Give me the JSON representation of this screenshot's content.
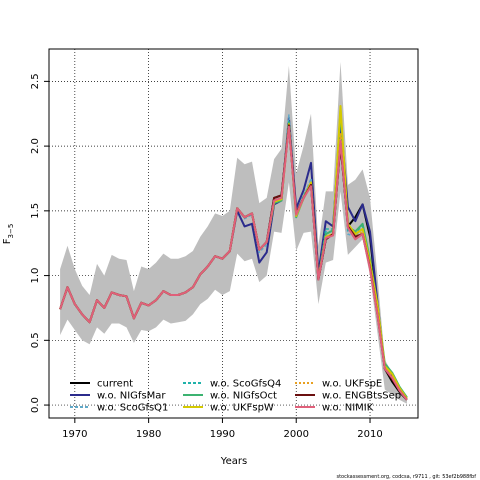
{
  "chart_data": {
    "type": "line",
    "xlabel": "Years",
    "ylabel": "F3-5",
    "ylabel_main": "F",
    "ylabel_sub": "3−5",
    "xlim": [
      1966.5,
      2016.5
    ],
    "ylim": [
      -0.1,
      2.75
    ],
    "xticks": [
      1970,
      1980,
      1990,
      2000,
      2010
    ],
    "yticks": [
      0.0,
      0.5,
      1.0,
      1.5,
      2.0,
      2.5
    ],
    "xtick_labels": [
      "1970",
      "1980",
      "1990",
      "2000",
      "2010"
    ],
    "ytick_labels": [
      "0.0",
      "0.5",
      "1.0",
      "1.5",
      "2.0",
      "2.5"
    ],
    "grid": true,
    "legend_position": "bottom-left",
    "footer": "stockassessment.org, codcsa, r9711 , git: 53ef2b988fbf",
    "x": [
      1968,
      1969,
      1970,
      1971,
      1972,
      1973,
      1974,
      1975,
      1976,
      1977,
      1978,
      1979,
      1980,
      1981,
      1982,
      1983,
      1984,
      1985,
      1986,
      1987,
      1988,
      1989,
      1990,
      1991,
      1992,
      1993,
      1994,
      1995,
      1996,
      1997,
      1998,
      1999,
      2000,
      2001,
      2002,
      2003,
      2004,
      2005,
      2006,
      2007,
      2008,
      2009,
      2010,
      2011,
      2012,
      2013,
      2014,
      2015
    ],
    "band": {
      "name": "confidence-band",
      "color": "#bebebe",
      "upper": [
        1.05,
        1.23,
        1.05,
        0.92,
        0.85,
        1.09,
        1.0,
        1.16,
        1.13,
        1.12,
        0.88,
        1.07,
        1.05,
        1.1,
        1.17,
        1.13,
        1.13,
        1.15,
        1.19,
        1.3,
        1.38,
        1.48,
        1.46,
        1.5,
        1.91,
        1.86,
        1.88,
        1.56,
        1.6,
        1.9,
        1.98,
        2.62,
        1.79,
        2.0,
        2.25,
        1.23,
        1.65,
        1.65,
        2.65,
        1.7,
        1.74,
        1.82,
        1.6,
        1.0,
        0.35,
        0.25,
        0.15,
        0.07
      ],
      "lower": [
        0.54,
        0.66,
        0.58,
        0.5,
        0.47,
        0.6,
        0.55,
        0.63,
        0.63,
        0.6,
        0.48,
        0.58,
        0.57,
        0.6,
        0.66,
        0.63,
        0.64,
        0.65,
        0.7,
        0.78,
        0.82,
        0.89,
        0.85,
        0.88,
        1.17,
        1.11,
        1.13,
        0.95,
        1.0,
        1.34,
        1.33,
        1.72,
        1.19,
        1.33,
        1.34,
        0.78,
        1.1,
        1.12,
        1.65,
        1.16,
        1.22,
        1.28,
        1.0,
        0.56,
        0.12,
        0.08,
        0.04,
        0.01
      ]
    },
    "series": [
      {
        "name": "current",
        "color": "#000000",
        "dash": "",
        "width": 2,
        "values": [
          0.74,
          0.91,
          0.78,
          0.7,
          0.64,
          0.81,
          0.75,
          0.87,
          0.85,
          0.84,
          0.67,
          0.79,
          0.77,
          0.81,
          0.88,
          0.85,
          0.85,
          0.87,
          0.91,
          1.01,
          1.07,
          1.15,
          1.13,
          1.19,
          1.52,
          1.45,
          1.48,
          1.2,
          1.26,
          1.6,
          1.62,
          2.16,
          1.48,
          1.6,
          1.7,
          0.97,
          1.28,
          1.32,
          2.02,
          1.38,
          1.45,
          1.55,
          1.3,
          0.76,
          0.28,
          0.18,
          0.1,
          0.04
        ]
      },
      {
        "name": "w.o. NIGfsMar",
        "color": "#2b2b8c",
        "dash": "",
        "width": 2,
        "values": [
          0.74,
          0.91,
          0.78,
          0.7,
          0.64,
          0.81,
          0.75,
          0.87,
          0.85,
          0.84,
          0.67,
          0.79,
          0.77,
          0.81,
          0.88,
          0.85,
          0.85,
          0.87,
          0.91,
          1.01,
          1.07,
          1.15,
          1.13,
          1.19,
          1.5,
          1.38,
          1.4,
          1.1,
          1.18,
          1.55,
          1.58,
          2.22,
          1.52,
          1.66,
          1.87,
          1.02,
          1.42,
          1.38,
          2.2,
          1.53,
          1.42,
          1.55,
          1.34,
          0.8,
          0.28,
          0.22,
          0.12,
          0.05
        ]
      },
      {
        "name": "w.o. ScoGfsQ1",
        "color": "#5fa8c8",
        "dash": "3,2",
        "width": 1.6,
        "values": [
          0.74,
          0.91,
          0.78,
          0.7,
          0.64,
          0.81,
          0.75,
          0.87,
          0.85,
          0.84,
          0.67,
          0.79,
          0.77,
          0.81,
          0.88,
          0.85,
          0.85,
          0.87,
          0.91,
          1.01,
          1.07,
          1.15,
          1.13,
          1.19,
          1.52,
          1.44,
          1.47,
          1.18,
          1.24,
          1.57,
          1.6,
          2.24,
          1.46,
          1.61,
          1.75,
          0.98,
          1.34,
          1.34,
          2.28,
          1.32,
          1.3,
          1.38,
          1.1,
          0.72,
          0.3,
          0.25,
          0.14,
          0.05
        ]
      },
      {
        "name": "w.o. ScoGfsQ4",
        "color": "#20b2aa",
        "dash": "3,2",
        "width": 1.6,
        "values": [
          0.74,
          0.91,
          0.78,
          0.7,
          0.64,
          0.81,
          0.75,
          0.87,
          0.85,
          0.84,
          0.67,
          0.79,
          0.77,
          0.81,
          0.88,
          0.85,
          0.85,
          0.87,
          0.91,
          1.01,
          1.07,
          1.15,
          1.13,
          1.19,
          1.52,
          1.45,
          1.48,
          1.2,
          1.26,
          1.58,
          1.6,
          2.2,
          1.47,
          1.62,
          1.72,
          0.98,
          1.36,
          1.36,
          2.3,
          1.35,
          1.32,
          1.4,
          1.12,
          0.74,
          0.3,
          0.22,
          0.12,
          0.05
        ]
      },
      {
        "name": "w.o. NIGfsOct",
        "color": "#3cb371",
        "dash": "",
        "width": 2,
        "values": [
          0.74,
          0.91,
          0.78,
          0.7,
          0.64,
          0.81,
          0.75,
          0.87,
          0.85,
          0.84,
          0.67,
          0.79,
          0.77,
          0.81,
          0.88,
          0.85,
          0.85,
          0.87,
          0.91,
          1.01,
          1.07,
          1.15,
          1.13,
          1.19,
          1.52,
          1.45,
          1.48,
          1.2,
          1.26,
          1.56,
          1.58,
          2.18,
          1.45,
          1.6,
          1.7,
          0.97,
          1.32,
          1.35,
          2.28,
          1.38,
          1.34,
          1.4,
          1.12,
          0.78,
          0.32,
          0.25,
          0.14,
          0.06
        ]
      },
      {
        "name": "w.o. UKFspW",
        "color": "#d4c900",
        "dash": "",
        "width": 2,
        "values": [
          0.74,
          0.91,
          0.78,
          0.7,
          0.64,
          0.81,
          0.75,
          0.87,
          0.85,
          0.84,
          0.67,
          0.79,
          0.77,
          0.81,
          0.88,
          0.85,
          0.85,
          0.87,
          0.91,
          1.01,
          1.07,
          1.15,
          1.13,
          1.19,
          1.52,
          1.45,
          1.48,
          1.2,
          1.26,
          1.57,
          1.59,
          2.17,
          1.46,
          1.6,
          1.72,
          0.98,
          1.3,
          1.32,
          2.31,
          1.4,
          1.32,
          1.36,
          1.1,
          0.78,
          0.3,
          0.24,
          0.13,
          0.05
        ]
      },
      {
        "name": "w.o. UKFspE",
        "color": "#e8a020",
        "dash": "2,2",
        "width": 1.6,
        "values": [
          0.74,
          0.91,
          0.78,
          0.7,
          0.64,
          0.81,
          0.75,
          0.87,
          0.85,
          0.84,
          0.67,
          0.79,
          0.77,
          0.81,
          0.88,
          0.85,
          0.85,
          0.87,
          0.91,
          1.01,
          1.07,
          1.15,
          1.13,
          1.19,
          1.52,
          1.45,
          1.48,
          1.2,
          1.26,
          1.58,
          1.6,
          2.16,
          1.47,
          1.61,
          1.71,
          0.97,
          1.3,
          1.32,
          2.1,
          1.38,
          1.3,
          1.34,
          1.08,
          0.74,
          0.29,
          0.22,
          0.12,
          0.05
        ]
      },
      {
        "name": "w.o. ENGBtsSep",
        "color": "#6b1010",
        "dash": "",
        "width": 2,
        "values": [
          0.74,
          0.91,
          0.78,
          0.7,
          0.64,
          0.81,
          0.75,
          0.87,
          0.85,
          0.84,
          0.67,
          0.79,
          0.77,
          0.81,
          0.88,
          0.85,
          0.85,
          0.87,
          0.91,
          1.01,
          1.07,
          1.15,
          1.13,
          1.19,
          1.52,
          1.45,
          1.48,
          1.2,
          1.26,
          1.6,
          1.62,
          2.16,
          1.48,
          1.6,
          1.7,
          0.97,
          1.28,
          1.32,
          2.02,
          1.38,
          1.3,
          1.32,
          1.06,
          0.7,
          0.28,
          0.2,
          0.11,
          0.04
        ]
      },
      {
        "name": "w.o. NIMIK",
        "color": "#e0607a",
        "dash": "",
        "width": 2,
        "values": [
          0.74,
          0.91,
          0.78,
          0.7,
          0.64,
          0.81,
          0.75,
          0.87,
          0.85,
          0.84,
          0.67,
          0.79,
          0.77,
          0.81,
          0.88,
          0.85,
          0.85,
          0.87,
          0.91,
          1.01,
          1.07,
          1.15,
          1.13,
          1.19,
          1.52,
          1.45,
          1.48,
          1.2,
          1.26,
          1.58,
          1.6,
          2.15,
          1.47,
          1.6,
          1.69,
          0.97,
          1.29,
          1.31,
          2.04,
          1.37,
          1.28,
          1.32,
          1.05,
          0.7,
          0.28,
          0.21,
          0.11,
          0.04
        ]
      }
    ]
  }
}
